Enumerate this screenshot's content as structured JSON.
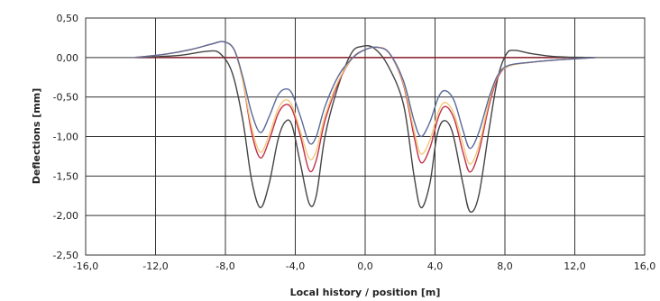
{
  "chart_data": {
    "type": "line",
    "title": "",
    "xlabel": "Local history / position [m]",
    "ylabel": "Deflections [mm]",
    "xlim": [
      -16,
      16
    ],
    "ylim": [
      -2.5,
      0.5
    ],
    "x_ticks": [
      -16,
      -12,
      -8,
      -4,
      0,
      4,
      8,
      12,
      16
    ],
    "y_ticks": [
      0.5,
      0,
      -0.5,
      -1,
      -1.5,
      -2,
      -2.5
    ],
    "x_tick_labels": [
      "-16,0",
      "-12,0",
      "-8,0",
      "-4,0",
      "0,0",
      "4,0",
      "8,0",
      "12,0",
      "16,0"
    ],
    "y_tick_labels": [
      "0,50",
      "0,00",
      "-0,50",
      "-1,00",
      "-1,50",
      "-2,00",
      "-2,50"
    ],
    "grid": true,
    "legend": "none",
    "series": [
      {
        "color": "#8a1e2a",
        "points": [
          [
            -13.2,
            0
          ],
          [
            13.2,
            0
          ]
        ]
      },
      {
        "color": "#444444",
        "points": [
          [
            -13.2,
            0
          ],
          [
            -12,
            0.01
          ],
          [
            -10.5,
            0.03
          ],
          [
            -9,
            0.08
          ],
          [
            -8.3,
            0.05
          ],
          [
            -7.6,
            -0.2
          ],
          [
            -7,
            -0.8
          ],
          [
            -6.5,
            -1.55
          ],
          [
            -6,
            -1.9
          ],
          [
            -5.5,
            -1.6
          ],
          [
            -5,
            -1.05
          ],
          [
            -4.6,
            -0.82
          ],
          [
            -4.2,
            -0.85
          ],
          [
            -3.7,
            -1.35
          ],
          [
            -3.2,
            -1.85
          ],
          [
            -2.8,
            -1.75
          ],
          [
            -2.3,
            -1.0
          ],
          [
            -1.6,
            -0.4
          ],
          [
            -0.8,
            0.05
          ],
          [
            -0.2,
            0.14
          ],
          [
            0.5,
            0.12
          ],
          [
            1.3,
            -0.1
          ],
          [
            2.2,
            -0.6
          ],
          [
            2.8,
            -1.5
          ],
          [
            3.2,
            -1.9
          ],
          [
            3.7,
            -1.6
          ],
          [
            4.1,
            -1.0
          ],
          [
            4.5,
            -0.8
          ],
          [
            5.0,
            -0.95
          ],
          [
            5.6,
            -1.6
          ],
          [
            6.0,
            -1.95
          ],
          [
            6.5,
            -1.75
          ],
          [
            7.1,
            -0.9
          ],
          [
            7.6,
            -0.25
          ],
          [
            8.1,
            0.05
          ],
          [
            8.6,
            0.09
          ],
          [
            9.5,
            0.05
          ],
          [
            11,
            0.01
          ],
          [
            13.2,
            0
          ]
        ]
      },
      {
        "color": "#c0304a",
        "points": [
          [
            -13.2,
            0
          ],
          [
            -11.5,
            0.04
          ],
          [
            -10,
            0.1
          ],
          [
            -8.8,
            0.17
          ],
          [
            -8.1,
            0.2
          ],
          [
            -7.5,
            0.1
          ],
          [
            -7,
            -0.3
          ],
          [
            -6.5,
            -0.95
          ],
          [
            -6,
            -1.27
          ],
          [
            -5.5,
            -1.05
          ],
          [
            -5,
            -0.72
          ],
          [
            -4.6,
            -0.6
          ],
          [
            -4.2,
            -0.65
          ],
          [
            -3.7,
            -1.0
          ],
          [
            -3.2,
            -1.43
          ],
          [
            -2.8,
            -1.3
          ],
          [
            -2.3,
            -0.8
          ],
          [
            -1.5,
            -0.3
          ],
          [
            -0.7,
            0
          ],
          [
            0,
            0.1
          ],
          [
            0.7,
            0.13
          ],
          [
            1.4,
            0.05
          ],
          [
            2.2,
            -0.35
          ],
          [
            2.8,
            -1.0
          ],
          [
            3.2,
            -1.33
          ],
          [
            3.7,
            -1.15
          ],
          [
            4.2,
            -0.75
          ],
          [
            4.6,
            -0.62
          ],
          [
            5.1,
            -0.78
          ],
          [
            5.6,
            -1.2
          ],
          [
            6.0,
            -1.45
          ],
          [
            6.5,
            -1.2
          ],
          [
            7.1,
            -0.6
          ],
          [
            7.6,
            -0.25
          ],
          [
            8.2,
            -0.11
          ],
          [
            9.5,
            -0.06
          ],
          [
            11,
            -0.03
          ],
          [
            13.2,
            0
          ]
        ]
      },
      {
        "color": "#f5c97a",
        "points": [
          [
            -13.2,
            0
          ],
          [
            -11.5,
            0.04
          ],
          [
            -10,
            0.1
          ],
          [
            -8.8,
            0.17
          ],
          [
            -8.1,
            0.2
          ],
          [
            -7.5,
            0.1
          ],
          [
            -7,
            -0.3
          ],
          [
            -6.5,
            -0.88
          ],
          [
            -6,
            -1.2
          ],
          [
            -5.5,
            -0.98
          ],
          [
            -5,
            -0.66
          ],
          [
            -4.6,
            -0.54
          ],
          [
            -4.2,
            -0.6
          ],
          [
            -3.7,
            -0.94
          ],
          [
            -3.2,
            -1.28
          ],
          [
            -2.8,
            -1.18
          ],
          [
            -2.3,
            -0.74
          ],
          [
            -1.5,
            -0.28
          ],
          [
            -0.7,
            0
          ],
          [
            0,
            0.1
          ],
          [
            0.7,
            0.13
          ],
          [
            1.4,
            0.05
          ],
          [
            2.2,
            -0.33
          ],
          [
            2.8,
            -0.92
          ],
          [
            3.2,
            -1.22
          ],
          [
            3.7,
            -1.05
          ],
          [
            4.2,
            -0.68
          ],
          [
            4.6,
            -0.57
          ],
          [
            5.1,
            -0.72
          ],
          [
            5.6,
            -1.1
          ],
          [
            6.0,
            -1.35
          ],
          [
            6.5,
            -1.12
          ],
          [
            7.1,
            -0.55
          ],
          [
            7.6,
            -0.23
          ],
          [
            8.2,
            -0.11
          ],
          [
            9.5,
            -0.06
          ],
          [
            11,
            -0.03
          ],
          [
            13.2,
            0
          ]
        ]
      },
      {
        "color": "#5a6a9a",
        "points": [
          [
            -13.2,
            0
          ],
          [
            -11.5,
            0.04
          ],
          [
            -10,
            0.1
          ],
          [
            -8.8,
            0.17
          ],
          [
            -8.1,
            0.2
          ],
          [
            -7.5,
            0.1
          ],
          [
            -7,
            -0.25
          ],
          [
            -6.5,
            -0.7
          ],
          [
            -6,
            -0.95
          ],
          [
            -5.5,
            -0.75
          ],
          [
            -5,
            -0.48
          ],
          [
            -4.6,
            -0.4
          ],
          [
            -4.2,
            -0.45
          ],
          [
            -3.7,
            -0.75
          ],
          [
            -3.2,
            -1.08
          ],
          [
            -2.8,
            -1.0
          ],
          [
            -2.3,
            -0.62
          ],
          [
            -1.5,
            -0.22
          ],
          [
            -0.7,
            0
          ],
          [
            0,
            0.1
          ],
          [
            0.7,
            0.13
          ],
          [
            1.4,
            0.05
          ],
          [
            2.2,
            -0.3
          ],
          [
            2.8,
            -0.8
          ],
          [
            3.2,
            -1.0
          ],
          [
            3.7,
            -0.82
          ],
          [
            4.2,
            -0.5
          ],
          [
            4.6,
            -0.42
          ],
          [
            5.1,
            -0.55
          ],
          [
            5.6,
            -0.92
          ],
          [
            6.0,
            -1.15
          ],
          [
            6.5,
            -0.95
          ],
          [
            7.1,
            -0.5
          ],
          [
            7.6,
            -0.22
          ],
          [
            8.2,
            -0.1
          ],
          [
            9.5,
            -0.06
          ],
          [
            11,
            -0.03
          ],
          [
            13.2,
            0
          ]
        ]
      }
    ]
  }
}
